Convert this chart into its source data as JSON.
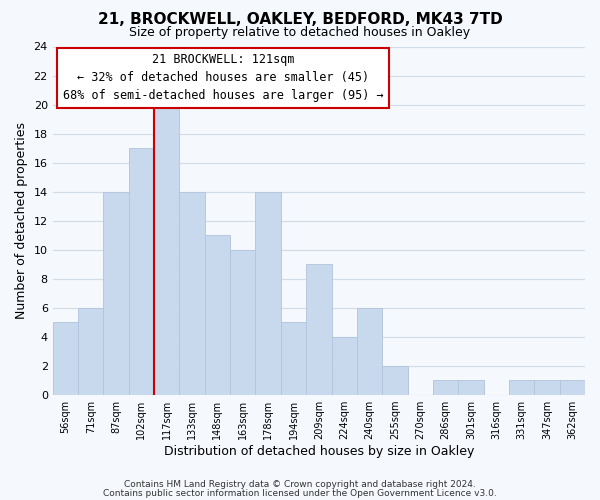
{
  "title_line1": "21, BROCKWELL, OAKLEY, BEDFORD, MK43 7TD",
  "title_line2": "Size of property relative to detached houses in Oakley",
  "xlabel": "Distribution of detached houses by size in Oakley",
  "ylabel": "Number of detached properties",
  "bar_color": "#c8d9ed",
  "bar_edge_color": "#b0c4de",
  "categories": [
    "56sqm",
    "71sqm",
    "87sqm",
    "102sqm",
    "117sqm",
    "133sqm",
    "148sqm",
    "163sqm",
    "178sqm",
    "194sqm",
    "209sqm",
    "224sqm",
    "240sqm",
    "255sqm",
    "270sqm",
    "286sqm",
    "301sqm",
    "316sqm",
    "331sqm",
    "347sqm",
    "362sqm"
  ],
  "values": [
    5,
    6,
    14,
    17,
    20,
    14,
    11,
    10,
    14,
    5,
    9,
    4,
    6,
    2,
    0,
    1,
    1,
    0,
    1,
    1,
    1
  ],
  "ylim": [
    0,
    24
  ],
  "yticks": [
    0,
    2,
    4,
    6,
    8,
    10,
    12,
    14,
    16,
    18,
    20,
    22,
    24
  ],
  "marker_label_line1": "21 BROCKWELL: 121sqm",
  "marker_label_line2": "← 32% of detached houses are smaller (45)",
  "marker_label_line3": "68% of semi-detached houses are larger (95) →",
  "annotation_box_color": "#ffffff",
  "annotation_box_edge": "#cc0000",
  "marker_line_color": "#cc0000",
  "marker_bin_index": 4,
  "grid_color": "#d0dce8",
  "footer_line1": "Contains HM Land Registry data © Crown copyright and database right 2024.",
  "footer_line2": "Contains public sector information licensed under the Open Government Licence v3.0.",
  "background_color": "#f5f8fc",
  "plot_bg_color": "#f5f8fc"
}
